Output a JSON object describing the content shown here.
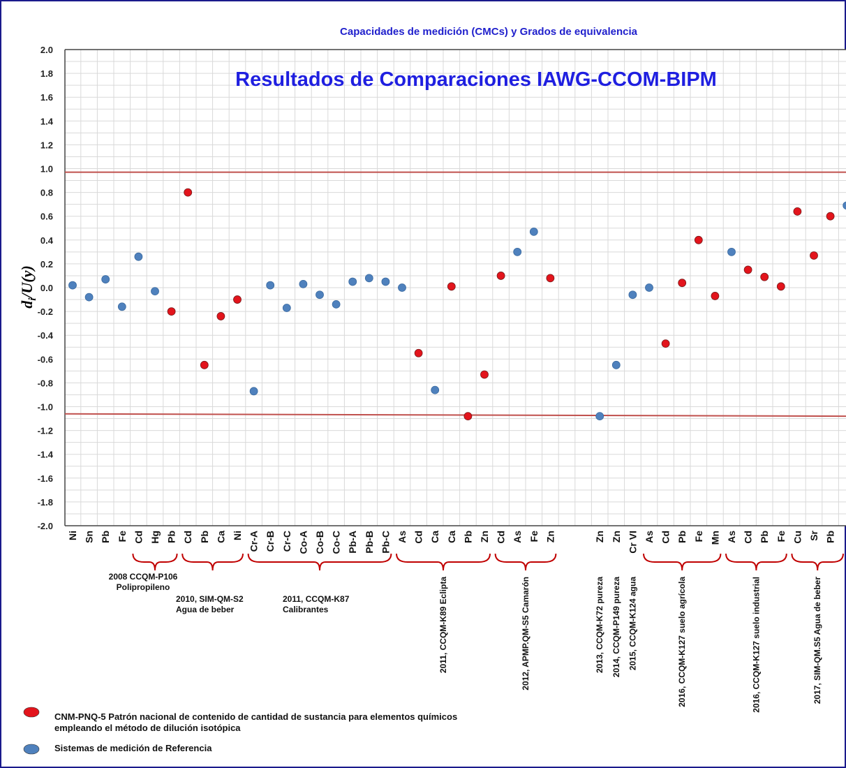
{
  "chart_data": {
    "type": "scatter",
    "title": "Capacidades de medición  (CMCs) y Grados de equivalencia",
    "subtitle": "Resultados de Comparaciones IAWG-CCOM-BIPM",
    "y_label": {
      "main": "d",
      "sub": "i",
      "rest": "/U(y)"
    },
    "categories": [
      "Ni",
      "Sn",
      "Pb",
      "Fe",
      "Cd",
      "Hg",
      "Pb",
      "Cd",
      "Pb",
      "Ca",
      "Ni",
      "Cr-A",
      "Cr-B",
      "Cr-C",
      "Co-A",
      "Co-B",
      "Co-C",
      "Pb-A",
      "Pb-B",
      "Pb-C",
      "As",
      "Cd",
      "Ca",
      "Ca",
      "Pb",
      "Zn",
      "Cd",
      "As",
      "Fe",
      "Zn",
      null,
      null,
      "Zn",
      "Zn",
      "Cr VI",
      "As",
      "Cd",
      "Pb",
      "Fe",
      "Mn",
      "As",
      "Cd",
      "Pb",
      "Fe",
      "Cu",
      "Sr",
      "Pb",
      null
    ],
    "series": [
      {
        "name": "CNM-PNQ-5 Patrón nacional de contenido de cantidad de sustancia para elementos químicos empleando el método de dilución isotópica",
        "color": "#e3141c",
        "values": [
          null,
          null,
          null,
          null,
          null,
          null,
          -0.2,
          0.8,
          -0.65,
          -0.24,
          -0.1,
          null,
          null,
          null,
          null,
          null,
          null,
          null,
          null,
          null,
          null,
          -0.55,
          null,
          0.01,
          -1.08,
          -0.73,
          0.1,
          null,
          null,
          0.08,
          null,
          null,
          null,
          null,
          null,
          null,
          -0.47,
          0.04,
          0.4,
          -0.07,
          null,
          0.15,
          0.09,
          0.01,
          0.64,
          0.27,
          0.6,
          null
        ]
      },
      {
        "name": "Sistemas de medición de Referencia",
        "color": "#4f81bd",
        "values": [
          0.02,
          -0.08,
          0.07,
          -0.16,
          0.26,
          -0.03,
          null,
          null,
          null,
          null,
          null,
          -0.87,
          0.02,
          -0.17,
          0.03,
          -0.06,
          -0.14,
          0.05,
          0.08,
          0.05,
          0,
          null,
          -0.86,
          null,
          null,
          null,
          null,
          0.3,
          0.47,
          null,
          null,
          null,
          -1.08,
          -0.65,
          -0.06,
          0,
          null,
          null,
          null,
          null,
          0.3,
          null,
          null,
          null,
          null,
          null,
          null,
          0.69
        ]
      }
    ],
    "reference_lines": [
      [
        0.97,
        0.97
      ],
      [
        -1.06,
        -1.08
      ]
    ],
    "ylim": [
      -2,
      2
    ],
    "yticks": [
      {
        "value": -2,
        "label": "-2.0"
      },
      -1.8,
      -1.6,
      -1.4,
      -1.2,
      {
        "value": -1,
        "label": "-1.0"
      },
      -0.8,
      -0.6,
      -0.4,
      -0.2,
      {
        "value": 0,
        "label": "0.0"
      },
      0.2,
      0.4,
      0.6,
      0.8,
      {
        "value": 1,
        "label": "1.0"
      },
      1.2,
      1.4,
      1.6,
      1.8,
      {
        "value": 2,
        "label": "2.0"
      }
    ],
    "grid": true,
    "annotations": [
      {
        "lines": [
          "2008 CCQM-P106",
          "Polipropileno"
        ]
      },
      {
        "lines": [
          "2010, SIM-QM-S2",
          "Agua de beber"
        ]
      },
      {
        "lines": [
          "2011, CCQM-K87",
          "Calibrantes"
        ]
      },
      {
        "lines": [
          "2011, CCQM-K89 Eclipta"
        ]
      },
      {
        "lines": [
          "2012, APMP.QM-S5 Camarón"
        ]
      },
      {
        "lines": [
          "2013, CCQM-K72 pureza"
        ]
      },
      {
        "lines": [
          "2014, CCQM-P149 pureza"
        ]
      },
      {
        "lines": [
          "2015, CCQM-K124 agua"
        ]
      },
      {
        "lines": [
          "2016, CCQM-K127 suelo agrícola"
        ]
      },
      {
        "lines": [
          "2016, CCQM-K127 suelo industrial"
        ]
      },
      {
        "lines": [
          "2017, SIM-QM.S5 Agua de beber"
        ]
      }
    ]
  }
}
